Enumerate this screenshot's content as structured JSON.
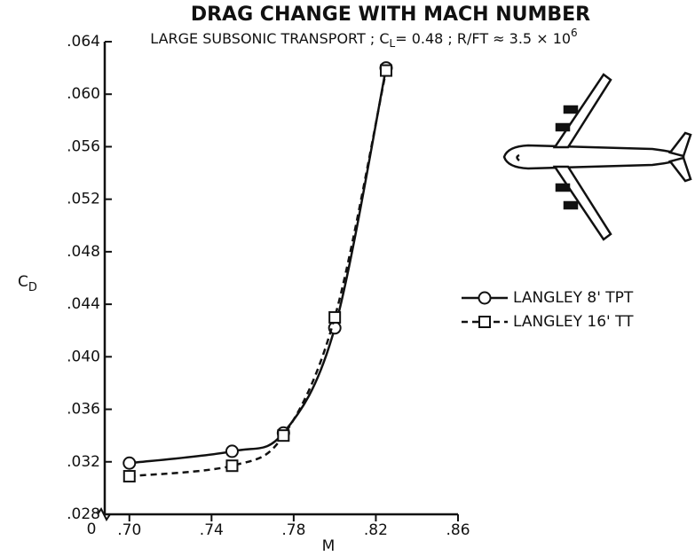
{
  "chart_data": {
    "type": "line",
    "title": "DRAG CHANGE WITH MACH NUMBER",
    "subtitle": [
      "LARGE SUBSONIC TRANSPORT ; C",
      "L",
      "= 0.48 ; R/FT ≈ 3.5 × 10",
      "6"
    ],
    "y_label": [
      "C",
      "D"
    ],
    "x_label": "M",
    "x_break_label": "0",
    "xlim": [
      0.688,
      0.86
    ],
    "xticks": [
      {
        "value": 0.7,
        "label": ".70"
      },
      {
        "value": 0.74,
        "label": ".74"
      },
      {
        "value": 0.78,
        "label": ".78"
      },
      {
        "value": 0.82,
        "label": ".82"
      },
      {
        "value": 0.86,
        "label": ".86"
      }
    ],
    "ylim": [
      0.028,
      0.064
    ],
    "yticks": [
      {
        "value": 0.028,
        "label": ".028"
      },
      {
        "value": 0.032,
        "label": ".032"
      },
      {
        "value": 0.036,
        "label": ".036"
      },
      {
        "value": 0.04,
        "label": ".040"
      },
      {
        "value": 0.044,
        "label": ".044"
      },
      {
        "value": 0.048,
        "label": ".048"
      },
      {
        "value": 0.052,
        "label": ".052"
      },
      {
        "value": 0.056,
        "label": ".056"
      },
      {
        "value": 0.06,
        "label": ".060"
      },
      {
        "value": 0.064,
        "label": ".064"
      }
    ],
    "series": [
      {
        "name": "LANGLEY 8' TPT",
        "color": "#111111",
        "marker": "circle",
        "dashed": false,
        "x": [
          0.7,
          0.75,
          0.775,
          0.8,
          0.825
        ],
        "values": [
          0.0319,
          0.0328,
          0.0342,
          0.0422,
          0.062
        ]
      },
      {
        "name": "LANGLEY 16' TT",
        "color": "#111111",
        "marker": "square",
        "dashed": true,
        "x": [
          0.7,
          0.75,
          0.775,
          0.8,
          0.825
        ],
        "values": [
          0.0309,
          0.0317,
          0.034,
          0.043,
          0.0618
        ]
      }
    ]
  }
}
